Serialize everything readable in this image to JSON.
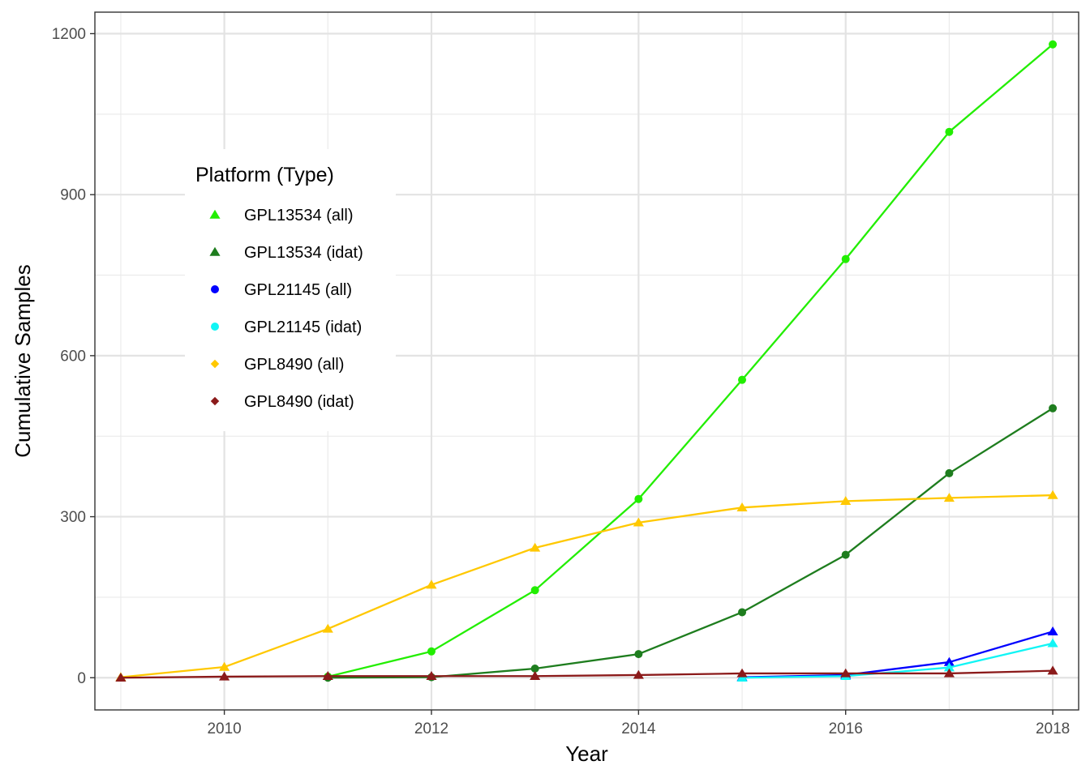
{
  "chart_data": {
    "type": "line",
    "title": "",
    "xlabel": "Year",
    "ylabel": "Cumulative Samples",
    "xlim": [
      2008.75,
      2018.25
    ],
    "ylim": [
      -60,
      1240
    ],
    "x_ticks": [
      2010,
      2012,
      2014,
      2016,
      2018
    ],
    "x_tick_labels": [
      "2010",
      "2012",
      "2014",
      "2016",
      "2018"
    ],
    "x_minor_ticks": [
      2009,
      2011,
      2013,
      2015,
      2017
    ],
    "y_ticks": [
      0,
      300,
      600,
      900,
      1200
    ],
    "y_tick_labels": [
      "0",
      "300",
      "600",
      "900",
      "1200"
    ],
    "y_minor_ticks": [
      150,
      450,
      750,
      1050
    ],
    "grid": true,
    "legend": {
      "title": "Platform (Type)",
      "position": "inside-left",
      "entries": [
        {
          "label": "GPL13534 (all)",
          "color": "#22ee00",
          "marker": "triangle"
        },
        {
          "label": "GPL13534 (idat)",
          "color": "#1e7d1e",
          "marker": "triangle"
        },
        {
          "label": "GPL21145 (all)",
          "color": "#0000ff",
          "marker": "circle"
        },
        {
          "label": "GPL21145 (idat)",
          "color": "#11f5f5",
          "marker": "circle"
        },
        {
          "label": "GPL8490 (all)",
          "color": "#ffc800",
          "marker": "diamond"
        },
        {
          "label": "GPL8490 (idat)",
          "color": "#8b1a1a",
          "marker": "diamond"
        }
      ]
    },
    "series": [
      {
        "key": "gpl13534-all",
        "color": "#22ee00",
        "marker": "circle",
        "x": [
          2011,
          2012,
          2013,
          2014,
          2015,
          2016,
          2017,
          2018
        ],
        "y": [
          2,
          49,
          163,
          333,
          555,
          780,
          1017,
          1180
        ]
      },
      {
        "key": "gpl13534-idat",
        "color": "#1e7d1e",
        "marker": "circle",
        "x": [
          2011,
          2012,
          2013,
          2014,
          2015,
          2016,
          2017,
          2018
        ],
        "y": [
          0,
          1,
          17,
          44,
          122,
          229,
          381,
          502
        ]
      },
      {
        "key": "gpl8490-all",
        "color": "#ffc800",
        "marker": "triangle",
        "x": [
          2009,
          2010,
          2011,
          2012,
          2013,
          2014,
          2015,
          2016,
          2017,
          2018
        ],
        "y": [
          1,
          20,
          91,
          173,
          242,
          289,
          317,
          329,
          335,
          340
        ]
      },
      {
        "key": "gpl21145-all",
        "color": "#0000ff",
        "marker": "triangle",
        "x": [
          2015,
          2016,
          2017,
          2018
        ],
        "y": [
          1,
          5,
          29,
          86
        ]
      },
      {
        "key": "gpl21145-idat",
        "color": "#11f5f5",
        "marker": "triangle",
        "x": [
          2015,
          2016,
          2017,
          2018
        ],
        "y": [
          0,
          3,
          19,
          64
        ]
      },
      {
        "key": "gpl8490-idat",
        "color": "#8b1a1a",
        "marker": "triangle",
        "x": [
          2009,
          2010,
          2011,
          2012,
          2013,
          2014,
          2015,
          2016,
          2017,
          2018
        ],
        "y": [
          0,
          2,
          3,
          3,
          3,
          5,
          8,
          8,
          8,
          13
        ]
      }
    ]
  }
}
